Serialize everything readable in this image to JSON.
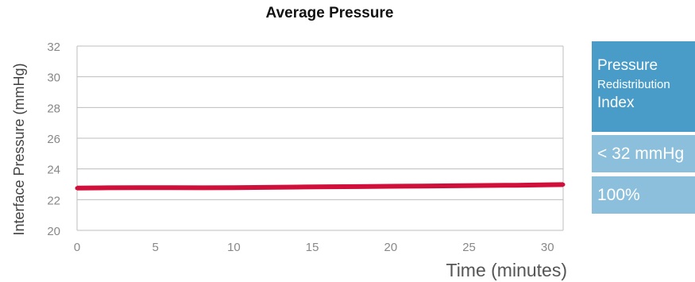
{
  "chart_data": {
    "type": "line",
    "title": "Average Pressure",
    "xlabel": "Time (minutes)",
    "ylabel": "Interface Pressure (mmHg)",
    "xlim": [
      0,
      31
    ],
    "ylim": [
      20,
      32
    ],
    "xticks": [
      0,
      5,
      10,
      15,
      20,
      25,
      30
    ],
    "yticks": [
      20,
      22,
      24,
      26,
      28,
      30,
      32
    ],
    "grid": true,
    "series": [
      {
        "color": "#d0103a",
        "x": [
          0,
          2,
          4,
          6,
          8,
          10,
          12,
          14,
          16,
          18,
          20,
          22,
          24,
          26,
          28,
          30,
          31
        ],
        "y": [
          22.75,
          22.77,
          22.78,
          22.78,
          22.77,
          22.78,
          22.8,
          22.82,
          22.84,
          22.85,
          22.87,
          22.88,
          22.9,
          22.92,
          22.94,
          22.97,
          22.98
        ]
      }
    ]
  },
  "index_panel": {
    "heading_line1": "Pressure",
    "heading_line2": "Redistribution",
    "heading_line3": "Index",
    "threshold": "< 32 mmHg",
    "percent": "100%"
  }
}
